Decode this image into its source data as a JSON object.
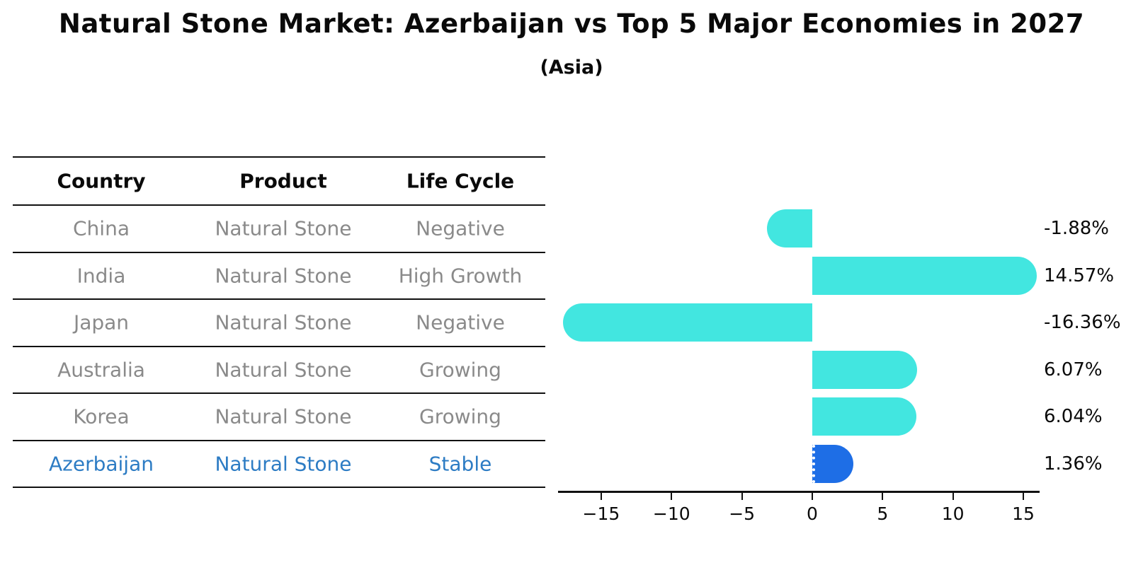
{
  "title": "Natural Stone Market: Azerbaijan vs Top 5 Major Economies in 2027",
  "subtitle": "(Asia)",
  "table": {
    "columns": [
      "Country",
      "Product",
      "Life Cycle"
    ],
    "rows": [
      {
        "country": "China",
        "product": "Natural Stone",
        "life_cycle": "Negative",
        "highlight": false
      },
      {
        "country": "India",
        "product": "Natural Stone",
        "life_cycle": "High Growth",
        "highlight": false
      },
      {
        "country": "Japan",
        "product": "Natural Stone",
        "life_cycle": "Negative",
        "highlight": false
      },
      {
        "country": "Australia",
        "product": "Natural Stone",
        "life_cycle": "Growing",
        "highlight": false
      },
      {
        "country": "Korea",
        "product": "Natural Stone",
        "life_cycle": "Growing",
        "highlight": false
      },
      {
        "country": "Azerbaijan",
        "product": "Natural Stone",
        "life_cycle": "Stable",
        "highlight": true
      }
    ]
  },
  "chart_data": {
    "type": "bar",
    "orientation": "horizontal",
    "title": "Natural Stone Market: Azerbaijan vs Top 5 Major Economies in 2027",
    "subtitle": "(Asia)",
    "categories": [
      "China",
      "India",
      "Japan",
      "Australia",
      "Korea",
      "Azerbaijan"
    ],
    "values": [
      -1.88,
      14.57,
      -16.36,
      6.07,
      6.04,
      1.36
    ],
    "value_labels": [
      "-1.88%",
      "14.57%",
      "-16.36%",
      "6.07%",
      "6.04%",
      "1.36%"
    ],
    "xticks": [
      -15,
      -10,
      -5,
      0,
      5,
      10,
      15
    ],
    "xtick_labels": [
      "−15",
      "−10",
      "−5",
      "0",
      "5",
      "10",
      "15"
    ],
    "xlim": [
      -18,
      16.2
    ],
    "xlabel": "",
    "ylabel": "",
    "grid": false,
    "legend": false,
    "highlight_index": 5
  },
  "colors": {
    "background": "#ffffff",
    "text": "#0a0a0a",
    "muted_text": "#8a8a8a",
    "highlight_text": "#2d7cc4",
    "bar": "#42e6e0",
    "highlight_bar": "#1e6ee6",
    "rule": "#111111"
  }
}
